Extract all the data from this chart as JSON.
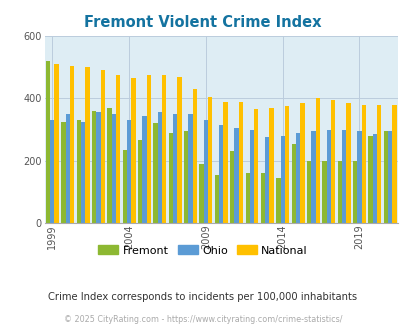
{
  "title": "Fremont Violent Crime Index",
  "subtitle": "Crime Index corresponds to incidents per 100,000 inhabitants",
  "footer": "© 2025 CityRating.com - https://www.cityrating.com/crime-statistics/",
  "years": [
    1999,
    2000,
    2001,
    2002,
    2003,
    2004,
    2005,
    2006,
    2007,
    2008,
    2009,
    2010,
    2011,
    2012,
    2013,
    2014,
    2015,
    2016,
    2017,
    2018,
    2019,
    2020,
    2021
  ],
  "fremont": [
    520,
    325,
    330,
    360,
    370,
    235,
    265,
    320,
    290,
    295,
    190,
    155,
    230,
    160,
    160,
    145,
    255,
    200,
    200,
    200,
    200,
    280,
    295
  ],
  "ohio": [
    330,
    350,
    325,
    355,
    350,
    330,
    345,
    355,
    350,
    350,
    330,
    315,
    305,
    300,
    275,
    280,
    290,
    295,
    300,
    300,
    295,
    285,
    295
  ],
  "national": [
    510,
    505,
    500,
    490,
    475,
    465,
    475,
    475,
    470,
    430,
    405,
    390,
    390,
    365,
    370,
    375,
    385,
    400,
    395,
    385,
    380,
    380,
    380
  ],
  "xlabel_ticks": [
    1999,
    2004,
    2009,
    2014,
    2019
  ],
  "ylim": [
    0,
    600
  ],
  "yticks": [
    0,
    200,
    400,
    600
  ],
  "color_fremont": "#8db832",
  "color_ohio": "#5b9bd5",
  "color_national": "#ffc000",
  "bg_color": "#deedf4",
  "title_color": "#1473a0",
  "subtitle_color": "#333333",
  "footer_color": "#aaaaaa",
  "bar_width": 0.28,
  "grid_color": "#bbccdd"
}
